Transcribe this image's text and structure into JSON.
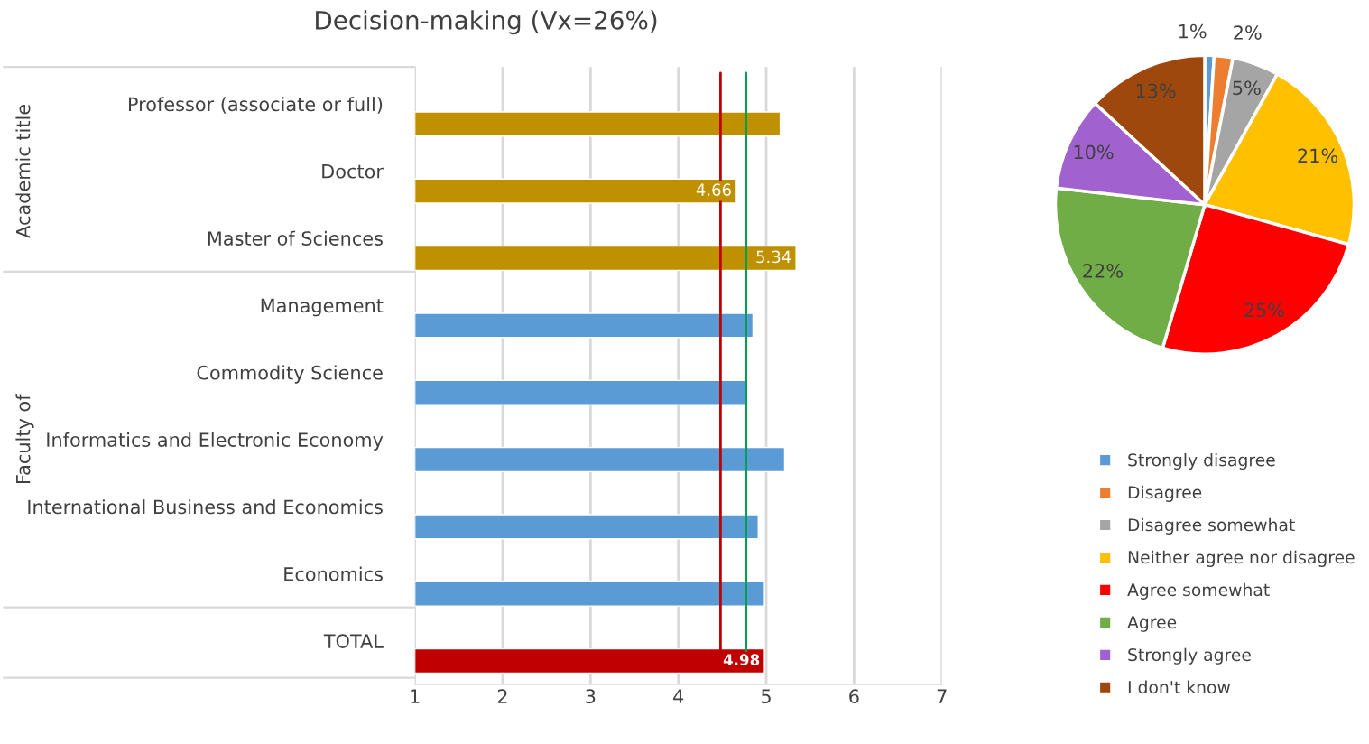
{
  "chart_data": [
    {
      "type": "bar",
      "orientation": "horizontal",
      "title": "Decision-making (Vx=26%)",
      "categories": [
        "Professor (associate or full)",
        "Doctor",
        "Master of Sciences",
        "Management",
        "Commodity Science",
        "Informatics and Electronic Economy",
        "International Business and Economics",
        "Economics",
        "TOTAL"
      ],
      "values": [
        5.16,
        4.66,
        5.34,
        4.85,
        4.77,
        5.21,
        4.91,
        4.98,
        4.98
      ],
      "colors": [
        "#bf9000",
        "#bf9000",
        "#bf9000",
        "#5b9bd5",
        "#5b9bd5",
        "#5b9bd5",
        "#5b9bd5",
        "#5b9bd5",
        "#c00000"
      ],
      "value_labels": [
        null,
        "4.66",
        "5.34",
        null,
        null,
        null,
        null,
        null,
        "4.98"
      ],
      "xlim": [
        1,
        7
      ],
      "xticks": [
        1,
        2,
        3,
        4,
        5,
        6,
        7
      ],
      "grid": "x",
      "ref_lines": [
        {
          "axis": "x",
          "value": 4.48,
          "color": "#c00000"
        },
        {
          "axis": "x",
          "value": 4.77,
          "color": "#00a050"
        }
      ],
      "annotations": [
        "Academic title",
        "Faculty of"
      ]
    },
    {
      "type": "pie",
      "categories": [
        "Strongly disagree",
        "Disagree",
        "Disagree somewhat",
        "Neither agree nor disagree",
        "Agree somewhat",
        "Agree",
        "Strongly agree",
        "I don't know"
      ],
      "values": [
        1,
        2,
        5,
        21,
        25,
        22,
        10,
        13
      ],
      "value_labels": [
        "1%",
        "2%",
        "5%",
        "21%",
        "25%",
        "22%",
        "10%",
        "13%"
      ],
      "colors": [
        "#5b9bd5",
        "#ed7d31",
        "#a5a5a5",
        "#ffc000",
        "#ff0000",
        "#70ad47",
        "#a162d0",
        "#9e480e"
      ],
      "legend": "bottom"
    }
  ]
}
